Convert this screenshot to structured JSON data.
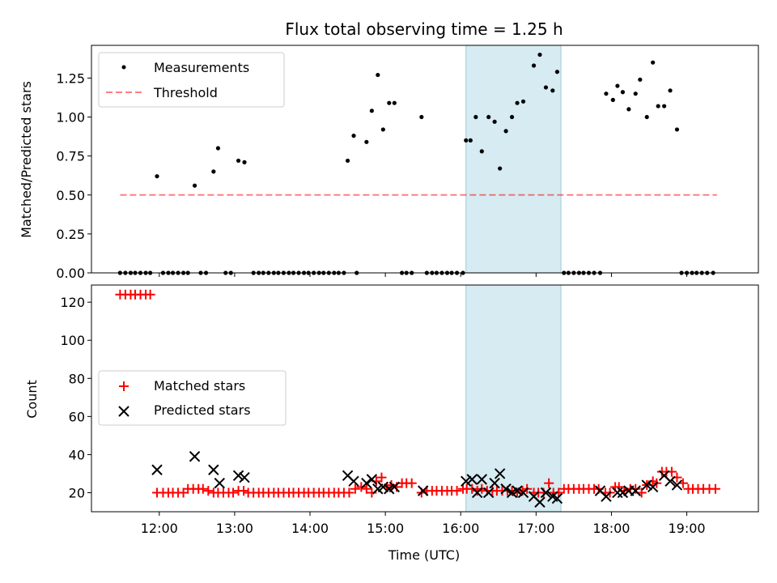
{
  "chart_data": [
    {
      "type": "scatter",
      "title": "Flux total observing time = 1.25 h",
      "xlabel": "",
      "ylabel": "Matched/Predicted stars",
      "xlim": [
        11.1,
        19.95
      ],
      "ylim": [
        0,
        1.46
      ],
      "yticks": [
        0.0,
        0.25,
        0.5,
        0.75,
        1.0,
        1.25
      ],
      "ytick_labels": [
        "0.00",
        "0.25",
        "0.50",
        "0.75",
        "1.00",
        "1.25"
      ],
      "shaded_span": [
        16.07,
        17.33
      ],
      "threshold": {
        "value": 0.5,
        "x_start": 11.48,
        "x_end": 19.4
      },
      "legend": {
        "position": "upper-left",
        "entries": [
          "Measurements",
          "Threshold"
        ]
      },
      "series": [
        {
          "name": "Measurements",
          "x": [
            11.48,
            11.55,
            11.62,
            11.68,
            11.75,
            11.82,
            11.88,
            11.97,
            12.05,
            12.12,
            12.18,
            12.25,
            12.32,
            12.38,
            12.47,
            12.55,
            12.62,
            12.72,
            12.78,
            12.88,
            12.95,
            13.05,
            13.13,
            13.25,
            13.32,
            13.38,
            13.45,
            13.52,
            13.58,
            13.65,
            13.72,
            13.78,
            13.85,
            13.92,
            13.98,
            14.05,
            14.12,
            14.18,
            14.25,
            14.32,
            14.38,
            14.45,
            14.5,
            14.62,
            14.58,
            14.75,
            14.82,
            14.9,
            14.97,
            15.05,
            15.12,
            15.22,
            15.28,
            15.35,
            15.48,
            15.55,
            15.62,
            15.68,
            15.75,
            15.82,
            15.88,
            15.95,
            16.03,
            16.07,
            16.13,
            16.2,
            16.28,
            16.37,
            16.45,
            16.52,
            16.6,
            16.68,
            16.75,
            16.83,
            16.97,
            17.05,
            17.13,
            17.22,
            17.28,
            17.37,
            17.43,
            17.5,
            17.57,
            17.63,
            17.7,
            17.77,
            17.85,
            17.93,
            18.02,
            18.08,
            18.15,
            18.23,
            18.32,
            18.38,
            18.47,
            18.55,
            18.62,
            18.7,
            18.78,
            18.87,
            18.93,
            19.0,
            19.07,
            19.13,
            19.2,
            19.27,
            19.35
          ],
          "y": [
            0,
            0,
            0,
            0,
            0,
            0,
            0,
            0.62,
            0,
            0,
            0,
            0,
            0,
            0,
            0.56,
            0,
            0,
            0.65,
            0.8,
            0,
            0,
            0.72,
            0.71,
            0,
            0,
            0,
            0,
            0,
            0,
            0,
            0,
            0,
            0,
            0,
            0,
            0,
            0,
            0,
            0,
            0,
            0,
            0,
            0.72,
            0,
            0.88,
            0.84,
            1.04,
            1.27,
            0.92,
            1.09,
            1.09,
            0,
            0,
            0,
            1.0,
            0,
            0,
            0,
            0,
            0,
            0,
            0,
            0,
            0.85,
            0.85,
            1.0,
            0.78,
            1.0,
            0.97,
            0.67,
            0.91,
            1.0,
            1.09,
            1.1,
            1.33,
            1.4,
            1.19,
            1.17,
            1.29,
            0,
            0,
            0,
            0,
            0,
            0,
            0,
            0,
            1.15,
            1.11,
            1.2,
            1.16,
            1.05,
            1.15,
            1.24,
            1.0,
            1.35,
            1.07,
            1.07,
            1.17,
            0.92,
            0,
            0,
            0,
            0,
            0,
            0,
            0
          ]
        }
      ]
    },
    {
      "type": "scatter",
      "title": "",
      "xlabel": "Time (UTC)",
      "ylabel": "Count",
      "xlim": [
        11.1,
        19.95
      ],
      "ylim": [
        10,
        129
      ],
      "yticks": [
        20,
        40,
        60,
        80,
        100,
        120
      ],
      "xticks": [
        12,
        13,
        14,
        15,
        16,
        17,
        18,
        19
      ],
      "xtick_labels": [
        "12:00",
        "13:00",
        "14:00",
        "15:00",
        "16:00",
        "17:00",
        "18:00",
        "19:00"
      ],
      "shaded_span": [
        16.07,
        17.33
      ],
      "legend": {
        "position": "center-left",
        "entries": [
          "Matched stars",
          "Predicted stars"
        ]
      },
      "series": [
        {
          "name": "Matched stars",
          "marker": "plus",
          "x": [
            11.48,
            11.55,
            11.62,
            11.68,
            11.75,
            11.82,
            11.88,
            11.97,
            12.05,
            12.12,
            12.18,
            12.25,
            12.32,
            12.38,
            12.45,
            12.52,
            12.58,
            12.65,
            12.72,
            12.78,
            12.85,
            12.92,
            12.98,
            13.05,
            13.12,
            13.18,
            13.25,
            13.32,
            13.38,
            13.45,
            13.52,
            13.58,
            13.65,
            13.72,
            13.78,
            13.85,
            13.92,
            13.98,
            14.05,
            14.12,
            14.18,
            14.25,
            14.32,
            14.38,
            14.45,
            14.52,
            14.6,
            14.68,
            14.75,
            14.82,
            14.88,
            14.95,
            15.02,
            15.08,
            15.15,
            15.22,
            15.28,
            15.35,
            15.48,
            15.55,
            15.62,
            15.68,
            15.75,
            15.82,
            15.88,
            15.95,
            16.03,
            16.08,
            16.15,
            16.22,
            16.28,
            16.35,
            16.42,
            16.48,
            16.55,
            16.62,
            16.68,
            16.75,
            16.82,
            16.88,
            16.97,
            17.03,
            17.1,
            17.17,
            17.23,
            17.3,
            17.37,
            17.43,
            17.5,
            17.57,
            17.63,
            17.7,
            17.77,
            17.83,
            17.92,
            17.98,
            18.05,
            18.1,
            18.17,
            18.25,
            18.32,
            18.4,
            18.47,
            18.55,
            18.6,
            18.67,
            18.73,
            18.8,
            18.87,
            18.95,
            19.02,
            19.08,
            19.15,
            19.22,
            19.3,
            19.38
          ],
          "y": [
            124,
            124,
            124,
            124,
            124,
            124,
            124,
            20,
            20,
            20,
            20,
            20,
            20,
            22,
            22,
            22,
            22,
            21,
            20,
            20,
            20,
            20,
            20,
            21,
            21,
            20,
            20,
            20,
            20,
            20,
            20,
            20,
            20,
            20,
            20,
            20,
            20,
            20,
            20,
            20,
            20,
            20,
            20,
            20,
            20,
            20,
            22,
            23,
            22,
            20,
            26,
            28,
            23,
            24,
            23,
            25,
            25,
            25,
            20,
            21,
            21,
            21,
            21,
            21,
            21,
            21,
            22,
            22,
            22,
            21,
            22,
            21,
            21,
            21,
            21,
            21,
            21,
            20,
            21,
            22,
            20,
            20,
            20,
            25,
            20,
            20,
            22,
            22,
            22,
            22,
            22,
            22,
            22,
            22,
            20,
            20,
            23,
            23,
            21,
            22,
            22,
            20,
            24,
            26,
            25,
            31,
            31,
            31,
            28,
            25,
            22,
            22,
            22,
            22,
            22,
            22
          ],
          "color": "#ff0000"
        },
        {
          "name": "Predicted stars",
          "marker": "x",
          "x": [
            11.97,
            12.47,
            12.72,
            12.8,
            13.05,
            13.13,
            14.5,
            14.58,
            14.75,
            14.82,
            14.9,
            14.97,
            15.05,
            15.12,
            15.5,
            16.07,
            16.15,
            16.22,
            16.28,
            16.37,
            16.45,
            16.52,
            16.6,
            16.68,
            16.75,
            16.83,
            16.97,
            17.05,
            17.13,
            17.22,
            17.28,
            17.85,
            17.93,
            18.08,
            18.15,
            18.23,
            18.32,
            18.47,
            18.55,
            18.7,
            18.78,
            18.87
          ],
          "y": [
            32,
            39,
            32,
            25,
            29,
            28,
            29,
            26,
            25,
            27,
            22,
            23,
            22,
            23,
            21,
            26,
            27,
            20,
            27,
            20,
            25,
            30,
            22,
            20,
            21,
            20,
            18,
            15,
            20,
            18,
            17,
            21,
            18,
            20,
            20,
            21,
            21,
            24,
            23,
            29,
            26,
            24
          ],
          "color": "#000000"
        }
      ]
    }
  ]
}
